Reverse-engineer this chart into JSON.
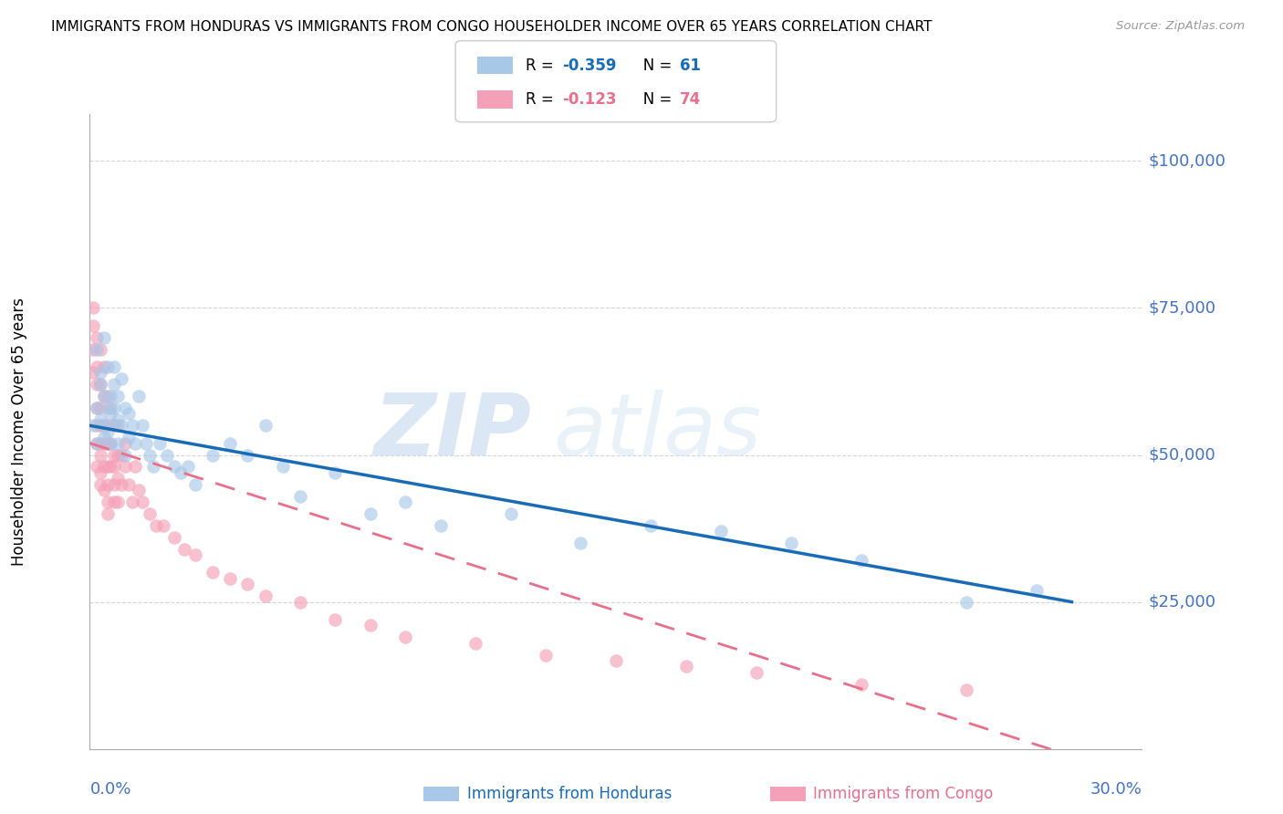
{
  "title": "IMMIGRANTS FROM HONDURAS VS IMMIGRANTS FROM CONGO HOUSEHOLDER INCOME OVER 65 YEARS CORRELATION CHART",
  "source": "Source: ZipAtlas.com",
  "ylabel": "Householder Income Over 65 years",
  "xlim": [
    0.0,
    0.3
  ],
  "ylim": [
    0,
    108000
  ],
  "yticks": [
    25000,
    50000,
    75000,
    100000
  ],
  "ytick_labels": [
    "$25,000",
    "$50,000",
    "$75,000",
    "$100,000"
  ],
  "legend_r_honduras": "-0.359",
  "legend_n_honduras": "61",
  "legend_r_congo": "-0.123",
  "legend_n_congo": "74",
  "color_honduras": "#a8c8e8",
  "color_congo": "#f4a0b8",
  "color_trendline_honduras": "#1a6bb5",
  "color_trendline_congo": "#e8708c",
  "color_axis_labels": "#4472c4",
  "background_color": "#ffffff",
  "grid_color": "#cccccc",
  "watermark_zip": "ZIP",
  "watermark_atlas": "atlas",
  "honduras_x": [
    0.001,
    0.002,
    0.002,
    0.002,
    0.003,
    0.003,
    0.003,
    0.004,
    0.004,
    0.004,
    0.004,
    0.005,
    0.005,
    0.005,
    0.006,
    0.006,
    0.006,
    0.007,
    0.007,
    0.007,
    0.007,
    0.008,
    0.008,
    0.008,
    0.009,
    0.009,
    0.01,
    0.01,
    0.011,
    0.011,
    0.012,
    0.013,
    0.014,
    0.015,
    0.016,
    0.017,
    0.018,
    0.02,
    0.022,
    0.024,
    0.026,
    0.028,
    0.03,
    0.035,
    0.04,
    0.045,
    0.05,
    0.055,
    0.06,
    0.07,
    0.08,
    0.09,
    0.1,
    0.12,
    0.14,
    0.16,
    0.18,
    0.2,
    0.22,
    0.25,
    0.27
  ],
  "honduras_y": [
    55000,
    58000,
    52000,
    68000,
    62000,
    56000,
    64000,
    60000,
    55000,
    70000,
    53000,
    58000,
    54000,
    65000,
    60000,
    52000,
    57000,
    65000,
    58000,
    55000,
    62000,
    56000,
    60000,
    52000,
    55000,
    63000,
    58000,
    50000,
    57000,
    53000,
    55000,
    52000,
    60000,
    55000,
    52000,
    50000,
    48000,
    52000,
    50000,
    48000,
    47000,
    48000,
    45000,
    50000,
    52000,
    50000,
    55000,
    48000,
    43000,
    47000,
    40000,
    42000,
    38000,
    40000,
    35000,
    38000,
    37000,
    35000,
    32000,
    25000,
    27000
  ],
  "congo_x": [
    0.001,
    0.001,
    0.001,
    0.001,
    0.002,
    0.002,
    0.002,
    0.002,
    0.002,
    0.002,
    0.002,
    0.003,
    0.003,
    0.003,
    0.003,
    0.003,
    0.003,
    0.003,
    0.003,
    0.004,
    0.004,
    0.004,
    0.004,
    0.004,
    0.004,
    0.005,
    0.005,
    0.005,
    0.005,
    0.005,
    0.005,
    0.005,
    0.006,
    0.006,
    0.006,
    0.007,
    0.007,
    0.007,
    0.007,
    0.007,
    0.008,
    0.008,
    0.008,
    0.008,
    0.009,
    0.009,
    0.01,
    0.01,
    0.011,
    0.012,
    0.013,
    0.014,
    0.015,
    0.017,
    0.019,
    0.021,
    0.024,
    0.027,
    0.03,
    0.035,
    0.04,
    0.045,
    0.05,
    0.06,
    0.07,
    0.08,
    0.09,
    0.11,
    0.13,
    0.15,
    0.17,
    0.19,
    0.22,
    0.25
  ],
  "congo_y": [
    72000,
    68000,
    64000,
    75000,
    70000,
    65000,
    62000,
    58000,
    55000,
    52000,
    48000,
    68000,
    62000,
    58000,
    55000,
    52000,
    50000,
    47000,
    45000,
    65000,
    60000,
    55000,
    52000,
    48000,
    44000,
    60000,
    55000,
    52000,
    48000,
    45000,
    42000,
    40000,
    58000,
    52000,
    48000,
    55000,
    50000,
    48000,
    45000,
    42000,
    55000,
    50000,
    46000,
    42000,
    50000,
    45000,
    52000,
    48000,
    45000,
    42000,
    48000,
    44000,
    42000,
    40000,
    38000,
    38000,
    36000,
    34000,
    33000,
    30000,
    29000,
    28000,
    26000,
    25000,
    22000,
    21000,
    19000,
    18000,
    16000,
    15000,
    14000,
    13000,
    11000,
    10000
  ]
}
